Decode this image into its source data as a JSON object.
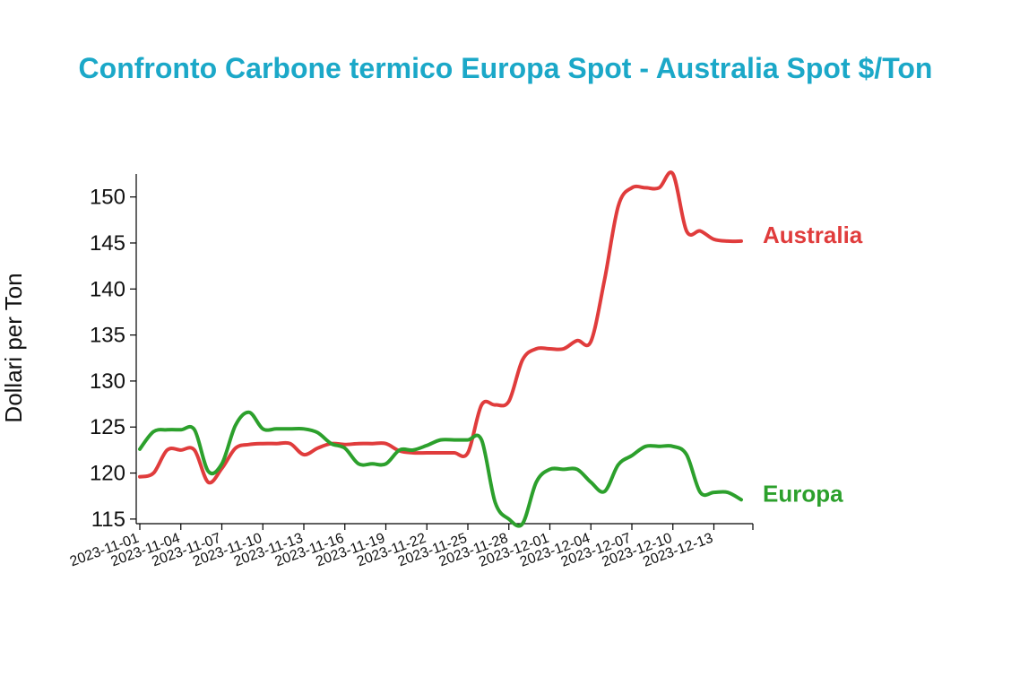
{
  "chart_data": {
    "type": "line",
    "title": "Confronto Carbone termico Europa Spot - Australia Spot $/Ton",
    "xlabel": "",
    "ylabel": "Dollari per Ton",
    "ylim": [
      114.5,
      152.5
    ],
    "yticks": [
      115,
      120,
      125,
      130,
      135,
      140,
      145,
      150
    ],
    "xticks": [
      "2023-11-01",
      "2023-11-04",
      "2023-11-07",
      "2023-11-10",
      "2023-11-13",
      "2023-11-16",
      "2023-11-19",
      "2023-11-22",
      "2023-11-25",
      "2023-11-28",
      "2023-12-01",
      "2023-12-04",
      "2023-12-07",
      "2023-12-10",
      "2023-12-13"
    ],
    "grid": false,
    "legend": "direct labels at line ends",
    "x": [
      "2023-11-01",
      "2023-11-02",
      "2023-11-03",
      "2023-11-04",
      "2023-11-05",
      "2023-11-06",
      "2023-11-07",
      "2023-11-08",
      "2023-11-09",
      "2023-11-10",
      "2023-11-11",
      "2023-11-12",
      "2023-11-13",
      "2023-11-14",
      "2023-11-15",
      "2023-11-16",
      "2023-11-17",
      "2023-11-18",
      "2023-11-19",
      "2023-11-20",
      "2023-11-21",
      "2023-11-22",
      "2023-11-23",
      "2023-11-24",
      "2023-11-25",
      "2023-11-26",
      "2023-11-27",
      "2023-11-28",
      "2023-11-29",
      "2023-11-30",
      "2023-12-01",
      "2023-12-02",
      "2023-12-03",
      "2023-12-04",
      "2023-12-05",
      "2023-12-06",
      "2023-12-07",
      "2023-12-08",
      "2023-12-09",
      "2023-12-10",
      "2023-12-11",
      "2023-12-12",
      "2023-12-13",
      "2023-12-14",
      "2023-12-15"
    ],
    "series": [
      {
        "name": "Australia",
        "color": "#e03c3c",
        "values": [
          119.6,
          120.0,
          122.5,
          122.5,
          122.5,
          119.0,
          120.5,
          122.7,
          123.1,
          123.2,
          123.2,
          123.2,
          122.0,
          122.7,
          123.2,
          123.1,
          123.2,
          123.2,
          123.2,
          122.4,
          122.2,
          122.2,
          122.2,
          122.2,
          122.2,
          127.4,
          127.4,
          127.8,
          132.3,
          133.5,
          133.5,
          133.5,
          134.4,
          134.3,
          141.0,
          149.0,
          151.0,
          151.0,
          151.0,
          152.5,
          146.3,
          146.3,
          145.4,
          145.2,
          145.2
        ]
      },
      {
        "name": "Europa",
        "color": "#2ca02c",
        "values": [
          122.6,
          124.5,
          124.7,
          124.7,
          124.7,
          120.2,
          121.0,
          125.2,
          126.6,
          124.8,
          124.8,
          124.8,
          124.8,
          124.4,
          123.2,
          122.7,
          121.0,
          121.0,
          121.0,
          122.5,
          122.5,
          123.0,
          123.6,
          123.6,
          123.6,
          123.6,
          116.8,
          115.0,
          114.5,
          119.0,
          120.4,
          120.4,
          120.4,
          119.0,
          118.0,
          120.9,
          121.9,
          122.9,
          122.9,
          122.9,
          122.0,
          117.9,
          117.9,
          117.9,
          117.1
        ]
      }
    ]
  }
}
